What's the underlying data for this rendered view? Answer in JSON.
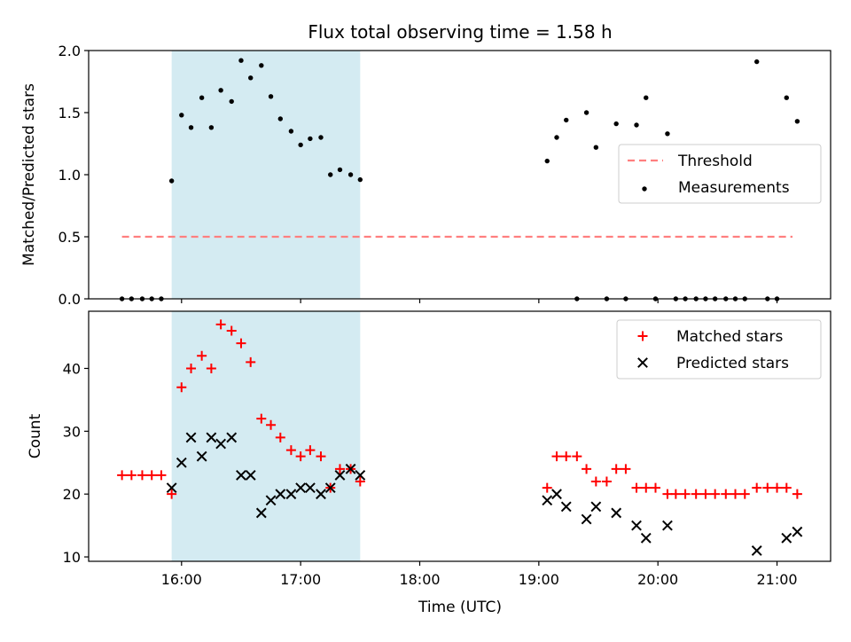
{
  "chart_data": [
    {
      "type": "scatter",
      "title": "Flux total observing time = 1.58 h",
      "ylabel": "Matched/Predicted stars",
      "xlabel": "",
      "xlim": [
        15.22,
        21.45
      ],
      "ylim": [
        0.0,
        2.0
      ],
      "yticks": [
        0.0,
        0.5,
        1.0,
        1.5,
        2.0
      ],
      "ytick_labels": [
        "0.0",
        "0.5",
        "1.0",
        "1.5",
        "2.0"
      ],
      "xticks": [
        16,
        17,
        18,
        19,
        20,
        21
      ],
      "grid": false,
      "legend_position": "center-right",
      "shaded_span": {
        "x": [
          15.917,
          17.5
        ],
        "color": "#add8e6"
      },
      "series": [
        {
          "name": "Threshold",
          "style": "dashed-line",
          "color": "#ff7f7f",
          "x": [
            15.5,
            21.13
          ],
          "y": [
            0.5,
            0.5
          ]
        },
        {
          "name": "Measurements",
          "style": "point",
          "color": "#000000",
          "points": [
            [
              15.5,
              0
            ],
            [
              15.58,
              0
            ],
            [
              15.67,
              0
            ],
            [
              15.75,
              0
            ],
            [
              15.83,
              0
            ],
            [
              15.917,
              0.95
            ],
            [
              16.0,
              1.48
            ],
            [
              16.08,
              1.38
            ],
            [
              16.17,
              1.62
            ],
            [
              16.25,
              1.38
            ],
            [
              16.33,
              1.68
            ],
            [
              16.42,
              1.59
            ],
            [
              16.5,
              1.92
            ],
            [
              16.58,
              1.78
            ],
            [
              16.67,
              1.88
            ],
            [
              16.75,
              1.63
            ],
            [
              16.83,
              1.45
            ],
            [
              16.92,
              1.35
            ],
            [
              17.0,
              1.24
            ],
            [
              17.08,
              1.29
            ],
            [
              17.17,
              1.3
            ],
            [
              17.25,
              1.0
            ],
            [
              17.33,
              1.04
            ],
            [
              17.42,
              1.0
            ],
            [
              17.5,
              0.96
            ],
            [
              19.07,
              1.11
            ],
            [
              19.15,
              1.3
            ],
            [
              19.23,
              1.44
            ],
            [
              19.32,
              0
            ],
            [
              19.4,
              1.5
            ],
            [
              19.48,
              1.22
            ],
            [
              19.57,
              0
            ],
            [
              19.65,
              1.41
            ],
            [
              19.73,
              0
            ],
            [
              19.82,
              1.4
            ],
            [
              19.9,
              1.62
            ],
            [
              19.98,
              0
            ],
            [
              20.08,
              1.33
            ],
            [
              20.15,
              0
            ],
            [
              20.23,
              0
            ],
            [
              20.32,
              0
            ],
            [
              20.4,
              0
            ],
            [
              20.48,
              0
            ],
            [
              20.57,
              0
            ],
            [
              20.65,
              0
            ],
            [
              20.73,
              0
            ],
            [
              20.83,
              1.91
            ],
            [
              20.92,
              0
            ],
            [
              21.0,
              0
            ],
            [
              21.08,
              1.62
            ],
            [
              21.17,
              1.43
            ]
          ]
        }
      ]
    },
    {
      "type": "scatter",
      "title": "",
      "ylabel": "Count",
      "xlabel": "Time (UTC)",
      "xlim": [
        15.22,
        21.45
      ],
      "ylim": [
        9.3,
        49.1
      ],
      "yticks": [
        10,
        20,
        30,
        40
      ],
      "ytick_labels": [
        "10",
        "20",
        "30",
        "40"
      ],
      "xticks": [
        16,
        17,
        18,
        19,
        20,
        21
      ],
      "xtick_labels": [
        "16:00",
        "17:00",
        "18:00",
        "19:00",
        "20:00",
        "21:00"
      ],
      "grid": false,
      "legend_position": "top-right",
      "shaded_span": {
        "x": [
          15.917,
          17.5
        ],
        "color": "#add8e6"
      },
      "series": [
        {
          "name": "Matched stars",
          "style": "plus",
          "color": "#ff0000",
          "points": [
            [
              15.5,
              23
            ],
            [
              15.58,
              23
            ],
            [
              15.67,
              23
            ],
            [
              15.75,
              23
            ],
            [
              15.83,
              23
            ],
            [
              15.917,
              20
            ],
            [
              16.0,
              37
            ],
            [
              16.08,
              40
            ],
            [
              16.17,
              42
            ],
            [
              16.25,
              40
            ],
            [
              16.33,
              47
            ],
            [
              16.42,
              46
            ],
            [
              16.5,
              44
            ],
            [
              16.58,
              41
            ],
            [
              16.67,
              32
            ],
            [
              16.75,
              31
            ],
            [
              16.83,
              29
            ],
            [
              16.92,
              27
            ],
            [
              17.0,
              26
            ],
            [
              17.08,
              27
            ],
            [
              17.17,
              26
            ],
            [
              17.25,
              21
            ],
            [
              17.33,
              24
            ],
            [
              17.42,
              24
            ],
            [
              17.5,
              22
            ],
            [
              19.07,
              21
            ],
            [
              19.15,
              26
            ],
            [
              19.23,
              26
            ],
            [
              19.32,
              26
            ],
            [
              19.4,
              24
            ],
            [
              19.48,
              22
            ],
            [
              19.57,
              22
            ],
            [
              19.65,
              24
            ],
            [
              19.73,
              24
            ],
            [
              19.82,
              21
            ],
            [
              19.9,
              21
            ],
            [
              19.98,
              21
            ],
            [
              20.08,
              20
            ],
            [
              20.15,
              20
            ],
            [
              20.23,
              20
            ],
            [
              20.32,
              20
            ],
            [
              20.4,
              20
            ],
            [
              20.48,
              20
            ],
            [
              20.57,
              20
            ],
            [
              20.65,
              20
            ],
            [
              20.73,
              20
            ],
            [
              20.83,
              21
            ],
            [
              20.92,
              21
            ],
            [
              21.0,
              21
            ],
            [
              21.08,
              21
            ],
            [
              21.17,
              20
            ]
          ]
        },
        {
          "name": "Predicted stars",
          "style": "x",
          "color": "#000000",
          "points": [
            [
              15.917,
              21
            ],
            [
              16.0,
              25
            ],
            [
              16.08,
              29
            ],
            [
              16.17,
              26
            ],
            [
              16.25,
              29
            ],
            [
              16.33,
              28
            ],
            [
              16.42,
              29
            ],
            [
              16.5,
              23
            ],
            [
              16.58,
              23
            ],
            [
              16.67,
              17
            ],
            [
              16.75,
              19
            ],
            [
              16.83,
              20
            ],
            [
              16.92,
              20
            ],
            [
              17.0,
              21
            ],
            [
              17.08,
              21
            ],
            [
              17.17,
              20
            ],
            [
              17.25,
              21
            ],
            [
              17.33,
              23
            ],
            [
              17.42,
              24
            ],
            [
              17.5,
              23
            ],
            [
              19.07,
              19
            ],
            [
              19.15,
              20
            ],
            [
              19.23,
              18
            ],
            [
              19.4,
              16
            ],
            [
              19.48,
              18
            ],
            [
              19.65,
              17
            ],
            [
              19.82,
              15
            ],
            [
              19.9,
              13
            ],
            [
              20.08,
              15
            ],
            [
              20.83,
              11
            ],
            [
              21.08,
              13
            ],
            [
              21.17,
              14
            ]
          ]
        }
      ]
    }
  ]
}
